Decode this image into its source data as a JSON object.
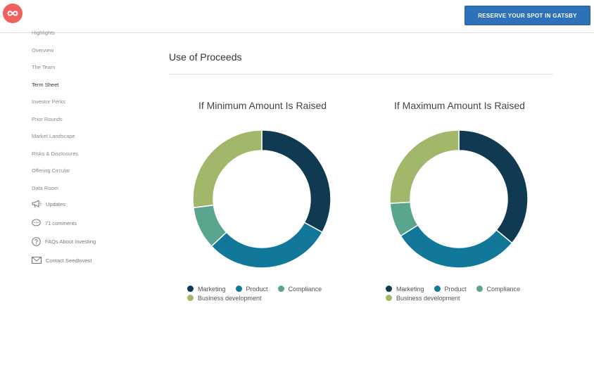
{
  "header": {
    "reserve_label": "RESERVE YOUR SPOT IN GATSBY",
    "logo_icon": "infinity-icon",
    "logo_color": "#f0605d",
    "button_color": "#2f71b8"
  },
  "sidebar": {
    "items": [
      {
        "label": "Highlights"
      },
      {
        "label": "Overview"
      },
      {
        "label": "The Team"
      },
      {
        "label": "Term Sheet",
        "active": true
      },
      {
        "label": "Investor Perks"
      },
      {
        "label": "Prior Rounds"
      },
      {
        "label": "Market Landscape"
      },
      {
        "label": "Risks & Disclosures"
      },
      {
        "label": "Offering Circular"
      },
      {
        "label": "Data Room"
      }
    ],
    "icon_items": [
      {
        "label": "Updates",
        "icon": "megaphone-icon"
      },
      {
        "label": "71 comments",
        "icon": "speech-bubble-icon"
      },
      {
        "label": "FAQs About Investing",
        "icon": "question-circle-icon"
      },
      {
        "label": "Contact SeedInvest",
        "icon": "envelope-icon"
      }
    ]
  },
  "main": {
    "section_title": "Use of Proceeds"
  },
  "chart_data": [
    {
      "type": "pie",
      "title": "If Minimum Amount Is Raised",
      "categories": [
        "Marketing",
        "Product",
        "Compliance",
        "Business development"
      ],
      "values": [
        33,
        30,
        10,
        27
      ],
      "colors": [
        "#0f3a52",
        "#12789a",
        "#5aa58e",
        "#a1b76a"
      ],
      "legend": "bottom"
    },
    {
      "type": "pie",
      "title": "If Maximum Amount Is Raised",
      "categories": [
        "Marketing",
        "Product",
        "Compliance",
        "Business development"
      ],
      "values": [
        36,
        30,
        8,
        26
      ],
      "colors": [
        "#0f3a52",
        "#12789a",
        "#5aa58e",
        "#a1b76a"
      ],
      "legend": "bottom"
    }
  ]
}
